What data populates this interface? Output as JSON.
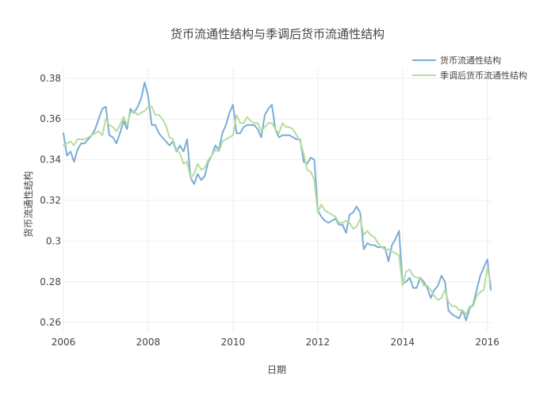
{
  "chart_data": {
    "type": "line",
    "title": "货币流通性结构与季调后货币流通性结构",
    "xlabel": "日期",
    "ylabel": "货币流通性结构",
    "xlim": [
      2006.0,
      2016.1
    ],
    "ylim": [
      0.255,
      0.385
    ],
    "x_ticks": [
      2006,
      2008,
      2010,
      2012,
      2014,
      2016
    ],
    "y_ticks": [
      0.26,
      0.28,
      0.3,
      0.32,
      0.34,
      0.36,
      0.38
    ],
    "y_tick_labels": [
      "0.26",
      "0.28",
      "0.3",
      "0.32",
      "0.34",
      "0.36",
      "0.38"
    ],
    "grid": true,
    "legend_position": "top-right",
    "series": [
      {
        "name": "货币流通性结构",
        "color": "#7aadd6",
        "x": [
          2006.0,
          2006.083,
          2006.167,
          2006.25,
          2006.333,
          2006.417,
          2006.5,
          2006.583,
          2006.667,
          2006.75,
          2006.833,
          2006.917,
          2007.0,
          2007.083,
          2007.167,
          2007.25,
          2007.333,
          2007.417,
          2007.5,
          2007.583,
          2007.667,
          2007.75,
          2007.833,
          2007.917,
          2008.0,
          2008.083,
          2008.167,
          2008.25,
          2008.333,
          2008.417,
          2008.5,
          2008.583,
          2008.667,
          2008.75,
          2008.833,
          2008.917,
          2009.0,
          2009.083,
          2009.167,
          2009.25,
          2009.333,
          2009.417,
          2009.5,
          2009.583,
          2009.667,
          2009.75,
          2009.833,
          2009.917,
          2010.0,
          2010.083,
          2010.167,
          2010.25,
          2010.333,
          2010.417,
          2010.5,
          2010.583,
          2010.667,
          2010.75,
          2010.833,
          2010.917,
          2011.0,
          2011.083,
          2011.167,
          2011.25,
          2011.333,
          2011.417,
          2011.5,
          2011.583,
          2011.667,
          2011.75,
          2011.833,
          2011.917,
          2012.0,
          2012.083,
          2012.167,
          2012.25,
          2012.333,
          2012.417,
          2012.5,
          2012.583,
          2012.667,
          2012.75,
          2012.833,
          2012.917,
          2013.0,
          2013.083,
          2013.167,
          2013.25,
          2013.333,
          2013.417,
          2013.5,
          2013.583,
          2013.667,
          2013.75,
          2013.833,
          2013.917,
          2014.0,
          2014.083,
          2014.167,
          2014.25,
          2014.333,
          2014.417,
          2014.5,
          2014.583,
          2014.667,
          2014.75,
          2014.833,
          2014.917,
          2015.0,
          2015.083,
          2015.167,
          2015.25,
          2015.333,
          2015.417,
          2015.5,
          2015.583,
          2015.667,
          2015.75,
          2015.833,
          2015.917,
          2016.0,
          2016.083
        ],
        "y": [
          0.353,
          0.342,
          0.344,
          0.339,
          0.345,
          0.348,
          0.348,
          0.35,
          0.352,
          0.355,
          0.36,
          0.365,
          0.366,
          0.352,
          0.351,
          0.348,
          0.353,
          0.359,
          0.355,
          0.365,
          0.363,
          0.366,
          0.37,
          0.378,
          0.371,
          0.357,
          0.357,
          0.353,
          0.351,
          0.349,
          0.347,
          0.349,
          0.344,
          0.347,
          0.344,
          0.35,
          0.331,
          0.328,
          0.333,
          0.33,
          0.332,
          0.339,
          0.342,
          0.347,
          0.345,
          0.353,
          0.357,
          0.363,
          0.367,
          0.353,
          0.353,
          0.356,
          0.357,
          0.357,
          0.357,
          0.355,
          0.351,
          0.362,
          0.365,
          0.367,
          0.355,
          0.351,
          0.352,
          0.352,
          0.352,
          0.351,
          0.35,
          0.35,
          0.339,
          0.338,
          0.341,
          0.34,
          0.315,
          0.312,
          0.31,
          0.309,
          0.31,
          0.311,
          0.308,
          0.308,
          0.304,
          0.313,
          0.314,
          0.317,
          0.314,
          0.296,
          0.299,
          0.298,
          0.298,
          0.297,
          0.297,
          0.297,
          0.29,
          0.298,
          0.301,
          0.305,
          0.279,
          0.28,
          0.282,
          0.277,
          0.277,
          0.282,
          0.28,
          0.277,
          0.272,
          0.276,
          0.278,
          0.283,
          0.28,
          0.266,
          0.264,
          0.263,
          0.262,
          0.266,
          0.261,
          0.267,
          0.269,
          0.276,
          0.283,
          0.287,
          0.291,
          0.276
        ]
      },
      {
        "name": "季调后货币流通性结构",
        "color": "#b5dd9f",
        "x": [
          2006.0,
          2006.083,
          2006.167,
          2006.25,
          2006.333,
          2006.417,
          2006.5,
          2006.583,
          2006.667,
          2006.75,
          2006.833,
          2006.917,
          2007.0,
          2007.083,
          2007.167,
          2007.25,
          2007.333,
          2007.417,
          2007.5,
          2007.583,
          2007.667,
          2007.75,
          2007.833,
          2007.917,
          2008.0,
          2008.083,
          2008.167,
          2008.25,
          2008.333,
          2008.417,
          2008.5,
          2008.583,
          2008.667,
          2008.75,
          2008.833,
          2008.917,
          2009.0,
          2009.083,
          2009.167,
          2009.25,
          2009.333,
          2009.417,
          2009.5,
          2009.583,
          2009.667,
          2009.75,
          2009.833,
          2009.917,
          2010.0,
          2010.083,
          2010.167,
          2010.25,
          2010.333,
          2010.417,
          2010.5,
          2010.583,
          2010.667,
          2010.75,
          2010.833,
          2010.917,
          2011.0,
          2011.083,
          2011.167,
          2011.25,
          2011.333,
          2011.417,
          2011.5,
          2011.583,
          2011.667,
          2011.75,
          2011.833,
          2011.917,
          2012.0,
          2012.083,
          2012.167,
          2012.25,
          2012.333,
          2012.417,
          2012.5,
          2012.583,
          2012.667,
          2012.75,
          2012.833,
          2012.917,
          2013.0,
          2013.083,
          2013.167,
          2013.25,
          2013.333,
          2013.417,
          2013.5,
          2013.583,
          2013.667,
          2013.75,
          2013.833,
          2013.917,
          2014.0,
          2014.083,
          2014.167,
          2014.25,
          2014.333,
          2014.417,
          2014.5,
          2014.583,
          2014.667,
          2014.75,
          2014.833,
          2014.917,
          2015.0,
          2015.083,
          2015.167,
          2015.25,
          2015.333,
          2015.417,
          2015.5,
          2015.583,
          2015.667,
          2015.75,
          2015.833,
          2015.917,
          2016.0,
          2016.083
        ],
        "y": [
          0.347,
          0.348,
          0.349,
          0.347,
          0.35,
          0.35,
          0.35,
          0.351,
          0.352,
          0.353,
          0.354,
          0.352,
          0.36,
          0.357,
          0.356,
          0.354,
          0.357,
          0.361,
          0.357,
          0.363,
          0.364,
          0.362,
          0.363,
          0.364,
          0.366,
          0.366,
          0.362,
          0.362,
          0.36,
          0.357,
          0.351,
          0.35,
          0.345,
          0.343,
          0.338,
          0.339,
          0.331,
          0.333,
          0.338,
          0.335,
          0.336,
          0.34,
          0.342,
          0.345,
          0.344,
          0.349,
          0.35,
          0.351,
          0.352,
          0.362,
          0.358,
          0.358,
          0.361,
          0.359,
          0.358,
          0.358,
          0.354,
          0.356,
          0.358,
          0.358,
          0.355,
          0.353,
          0.358,
          0.356,
          0.356,
          0.355,
          0.352,
          0.349,
          0.343,
          0.335,
          0.334,
          0.33,
          0.314,
          0.318,
          0.315,
          0.314,
          0.313,
          0.312,
          0.309,
          0.309,
          0.31,
          0.309,
          0.306,
          0.307,
          0.311,
          0.303,
          0.305,
          0.303,
          0.302,
          0.299,
          0.297,
          0.296,
          0.296,
          0.295,
          0.294,
          0.293,
          0.278,
          0.285,
          0.286,
          0.283,
          0.282,
          0.282,
          0.278,
          0.278,
          0.276,
          0.273,
          0.271,
          0.272,
          0.276,
          0.27,
          0.268,
          0.268,
          0.266,
          0.266,
          0.264,
          0.268,
          0.268,
          0.273,
          0.275,
          0.276,
          0.287,
          0.279
        ]
      }
    ]
  }
}
